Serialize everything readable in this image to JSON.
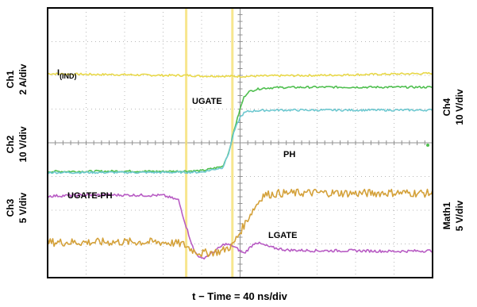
{
  "chart_data": {
    "type": "line",
    "title": "",
    "xlabel": "t − Time = 40 ns/div",
    "time_per_div_ns": 40,
    "grid": true,
    "divisions": {
      "x": 10,
      "y": 8
    },
    "cursor_markers": [
      {
        "div": 3.6,
        "color": "#f6e27a"
      },
      {
        "div": 4.8,
        "color": "#f6e27a"
      }
    ],
    "channels": [
      {
        "name": "Ch1",
        "scale": "2 A/div",
        "side": "left"
      },
      {
        "name": "Ch2",
        "scale": "10 V/div",
        "side": "left"
      },
      {
        "name": "Ch3",
        "scale": "5 V/div",
        "side": "left"
      },
      {
        "name": "Ch4",
        "scale": "10 V/div",
        "side": "right"
      },
      {
        "name": "Math1",
        "scale": "5 V/div",
        "side": "right"
      }
    ],
    "series": [
      {
        "name": "I(IND)",
        "color": "#e8d84a",
        "x": [
          0,
          1,
          2,
          3,
          3.6,
          4,
          4.5,
          5,
          6,
          7,
          8,
          9,
          10
        ],
        "y": [
          6.05,
          6.03,
          6.02,
          6.0,
          6.0,
          5.98,
          5.98,
          5.97,
          5.99,
          6.0,
          6.02,
          6.04,
          6.06
        ]
      },
      {
        "name": "UGATE",
        "color": "#4fbf4f",
        "x": [
          0,
          1,
          2,
          3,
          4,
          4.55,
          4.7,
          4.85,
          5.0,
          5.1,
          5.2,
          5.4,
          5.6,
          6,
          7,
          8,
          9,
          10
        ],
        "y": [
          3.15,
          3.15,
          3.16,
          3.15,
          3.17,
          3.3,
          3.7,
          4.4,
          5.0,
          5.35,
          5.5,
          5.58,
          5.62,
          5.64,
          5.65,
          5.65,
          5.65,
          5.65
        ]
      },
      {
        "name": "Ch4",
        "color": "#6ec8d0",
        "x": [
          0,
          1,
          2,
          3,
          4,
          4.55,
          4.7,
          4.85,
          5.0,
          5.1,
          5.2,
          5.4,
          5.6,
          6,
          7,
          8,
          9,
          10
        ],
        "y": [
          3.12,
          3.12,
          3.12,
          3.12,
          3.13,
          3.27,
          3.68,
          4.35,
          4.75,
          4.88,
          4.93,
          4.95,
          4.96,
          4.97,
          4.97,
          4.97,
          4.97,
          4.97
        ]
      },
      {
        "name": "UGATE-PH",
        "color": "#b85cc4",
        "x": [
          0,
          1,
          2,
          3,
          3.4,
          3.55,
          3.8,
          4.0,
          4.3,
          4.6,
          4.8,
          5.1,
          5.4,
          5.8,
          6.2,
          7,
          8,
          9,
          10
        ],
        "y": [
          2.42,
          2.45,
          2.45,
          2.44,
          2.3,
          1.7,
          0.8,
          0.55,
          0.75,
          1.0,
          0.95,
          0.72,
          1.05,
          0.9,
          0.82,
          0.8,
          0.8,
          0.78,
          0.8
        ]
      },
      {
        "name": "LGATE",
        "color": "#d4a13a",
        "x": [
          0,
          1,
          2,
          3,
          3.5,
          3.8,
          4.0,
          4.5,
          4.8,
          5.0,
          5.3,
          5.6,
          6.0,
          7,
          8,
          9,
          10
        ],
        "y": [
          1.05,
          1.05,
          1.06,
          1.05,
          1.0,
          0.8,
          0.72,
          0.78,
          0.95,
          1.35,
          1.95,
          2.45,
          2.5,
          2.52,
          2.5,
          2.52,
          2.5
        ]
      }
    ],
    "labels": [
      {
        "name": "Ch1",
        "text": "I",
        "sub": "(IND)"
      },
      {
        "name": "UGATE",
        "text": "UGATE"
      },
      {
        "name": "PH",
        "text": "PH"
      },
      {
        "name": "UGATE-PH",
        "text": "UGATE-PH"
      },
      {
        "name": "LGATE",
        "text": "LGATE"
      }
    ]
  }
}
